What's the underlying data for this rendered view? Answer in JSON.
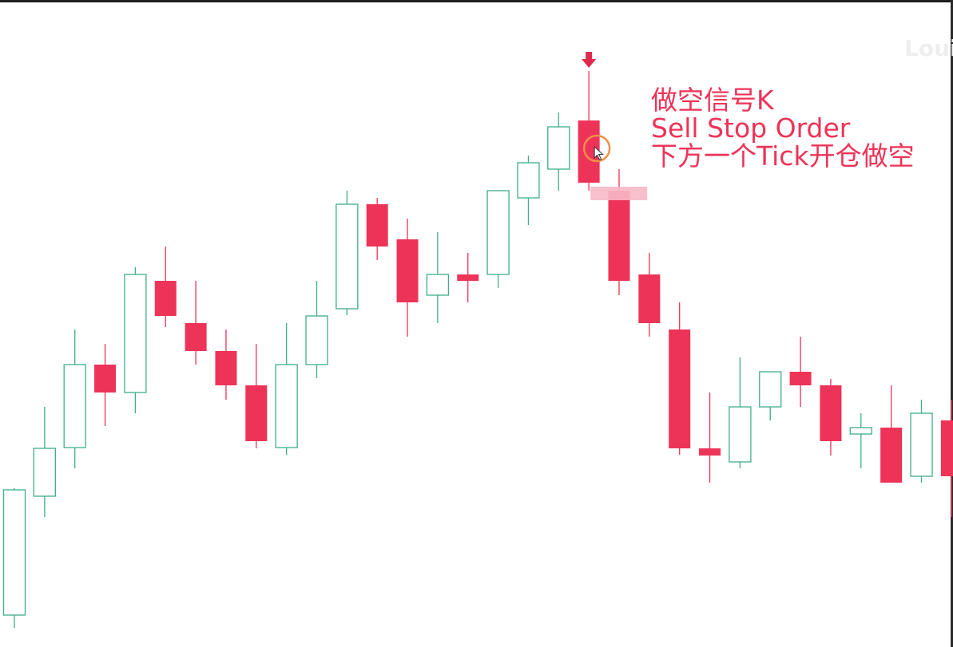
{
  "colors": {
    "bear": "#ee3358",
    "bull": "#3fae8c",
    "signal": "#e0294f",
    "highlight": "#f7b9c6",
    "cursor_ring": "#f08f4a",
    "annotation_text": "#ee3358"
  },
  "watermark": "Loui",
  "annotation": {
    "line1": "做空信号K",
    "line2": "Sell Stop Order",
    "line3": "下方一个Tick开仓做空"
  },
  "markers": {
    "signal_arrow": "down-arrow-icon",
    "entry_zone": "highlight-bar",
    "cursor": "cursor-icon"
  },
  "chart_data": {
    "type": "candlestick",
    "title": "",
    "xlabel": "",
    "ylabel": "",
    "ylim": [
      -789,
      -61
    ],
    "signal_index": 19,
    "entry_level": -242,
    "ohlc": [
      {
        "o": -771,
        "h": -612,
        "l": -787,
        "c": -614
      },
      {
        "o": -622,
        "h": -510,
        "l": -648,
        "c": -562
      },
      {
        "o": -561,
        "h": -413,
        "l": -587,
        "c": -457
      },
      {
        "o": -457,
        "h": -431,
        "l": -534,
        "c": -492
      },
      {
        "o": -492,
        "h": -335,
        "l": -518,
        "c": -344
      },
      {
        "o": -352,
        "h": -309,
        "l": -410,
        "c": -396
      },
      {
        "o": -405,
        "h": -352,
        "l": -457,
        "c": -440
      },
      {
        "o": -440,
        "h": -413,
        "l": -501,
        "c": -483
      },
      {
        "o": -483,
        "h": -431,
        "l": -562,
        "c": -553
      },
      {
        "o": -561,
        "h": -405,
        "l": -570,
        "c": -457
      },
      {
        "o": -457,
        "h": -352,
        "l": -474,
        "c": -396
      },
      {
        "o": -387,
        "h": -239,
        "l": -395,
        "c": -256
      },
      {
        "o": -256,
        "h": -248,
        "l": -326,
        "c": -309
      },
      {
        "o": -300,
        "h": -274,
        "l": -422,
        "c": -379
      },
      {
        "o": -370,
        "h": -291,
        "l": -405,
        "c": -344
      },
      {
        "o": -344,
        "h": -317,
        "l": -379,
        "c": -352
      },
      {
        "o": -344,
        "h": -239,
        "l": -361,
        "c": -239
      },
      {
        "o": -248,
        "h": -195,
        "l": -282,
        "c": -204
      },
      {
        "o": -212,
        "h": -141,
        "l": -239,
        "c": -159
      },
      {
        "o": -151,
        "h": -89,
        "l": -239,
        "c": -229
      },
      {
        "o": -239,
        "h": -212,
        "l": -370,
        "c": -352
      },
      {
        "o": -344,
        "h": -317,
        "l": -422,
        "c": -405
      },
      {
        "o": -413,
        "h": -379,
        "l": -570,
        "c": -562
      },
      {
        "o": -562,
        "h": -492,
        "l": -605,
        "c": -571
      },
      {
        "o": -579,
        "h": -448,
        "l": -587,
        "c": -510
      },
      {
        "o": -510,
        "h": -466,
        "l": -527,
        "c": -466
      },
      {
        "o": -466,
        "h": -422,
        "l": -510,
        "c": -483
      },
      {
        "o": -483,
        "h": -475,
        "l": -571,
        "c": -553
      },
      {
        "o": -544,
        "h": -518,
        "l": -587,
        "c": -536
      },
      {
        "o": -536,
        "h": -483,
        "l": -605,
        "c": -605
      },
      {
        "o": -597,
        "h": -501,
        "l": -605,
        "c": -518
      },
      {
        "o": -527,
        "h": -501,
        "l": -648,
        "c": -597
      }
    ]
  }
}
